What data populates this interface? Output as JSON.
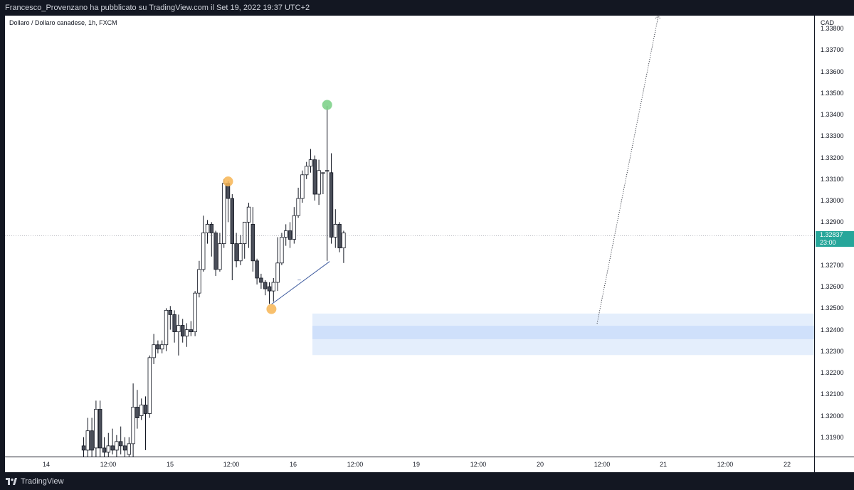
{
  "header": {
    "publication": "Francesco_Provenzano ha pubblicato su TradingView.com il Set 19, 2022 19:37 UTC+2"
  },
  "footer": {
    "brand": "TradingView"
  },
  "colors": {
    "background": "#131722",
    "candle_up": "#ffffff",
    "candle_down": "#4a4e59",
    "candle_outline": "#131722",
    "zone_outer": "#e4eefc",
    "zone_inner": "#cfe0fb",
    "pivot_orange": "#f7b553",
    "pivot_green": "#7fd18b",
    "trend_line": "#3d5a9e",
    "last_price": "#26a69a"
  },
  "chart_data": {
    "type": "candlestick",
    "title": "Dollaro / Dollaro canadese, 1h, FXCM",
    "currency": "CAD",
    "ylim": [
      1.3181,
      1.3386
    ],
    "y_ticks": [
      "1.33800",
      "1.33700",
      "1.33600",
      "1.33500",
      "1.33400",
      "1.33300",
      "1.33200",
      "1.33100",
      "1.33000",
      "1.32900",
      "1.32700",
      "1.32600",
      "1.32500",
      "1.32400",
      "1.32300",
      "1.32200",
      "1.32100",
      "1.32000",
      "1.31900"
    ],
    "x_ticks": [
      "14",
      "12:00",
      "15",
      "12:00",
      "16",
      "12:00",
      "19",
      "12:00",
      "20",
      "12:00",
      "21",
      "12:00",
      "22"
    ],
    "last_price": {
      "value": "1.32837",
      "countdown": "23:00"
    },
    "candles": [
      {
        "i": 0,
        "o": 1.3186,
        "h": 1.319,
        "l": 1.318,
        "c": 1.3184
      },
      {
        "i": 1,
        "o": 1.3184,
        "h": 1.3199,
        "l": 1.318,
        "c": 1.3193
      },
      {
        "i": 2,
        "o": 1.3193,
        "h": 1.3199,
        "l": 1.318,
        "c": 1.3184
      },
      {
        "i": 3,
        "o": 1.3185,
        "h": 1.3207,
        "l": 1.318,
        "c": 1.3203
      },
      {
        "i": 4,
        "o": 1.3203,
        "h": 1.3207,
        "l": 1.318,
        "c": 1.3185
      },
      {
        "i": 5,
        "o": 1.3185,
        "h": 1.319,
        "l": 1.318,
        "c": 1.3183
      },
      {
        "i": 6,
        "o": 1.3183,
        "h": 1.3192,
        "l": 1.3181,
        "c": 1.3186
      },
      {
        "i": 7,
        "o": 1.3186,
        "h": 1.3194,
        "l": 1.3182,
        "c": 1.3184
      },
      {
        "i": 8,
        "o": 1.3184,
        "h": 1.3191,
        "l": 1.3181,
        "c": 1.3188
      },
      {
        "i": 9,
        "o": 1.3188,
        "h": 1.3195,
        "l": 1.3182,
        "c": 1.3186
      },
      {
        "i": 10,
        "o": 1.3186,
        "h": 1.319,
        "l": 1.3181,
        "c": 1.3184
      },
      {
        "i": 11,
        "o": 1.3182,
        "h": 1.319,
        "l": 1.318,
        "c": 1.3187
      },
      {
        "i": 12,
        "o": 1.3187,
        "h": 1.3215,
        "l": 1.3181,
        "c": 1.3204
      },
      {
        "i": 13,
        "o": 1.3204,
        "h": 1.3212,
        "l": 1.3194,
        "c": 1.3199
      },
      {
        "i": 14,
        "o": 1.32,
        "h": 1.3208,
        "l": 1.3198,
        "c": 1.3205
      },
      {
        "i": 15,
        "o": 1.3205,
        "h": 1.3209,
        "l": 1.3184,
        "c": 1.3201
      },
      {
        "i": 16,
        "o": 1.3201,
        "h": 1.3228,
        "l": 1.3199,
        "c": 1.3227
      },
      {
        "i": 17,
        "o": 1.3227,
        "h": 1.3238,
        "l": 1.3224,
        "c": 1.3233
      },
      {
        "i": 18,
        "o": 1.3233,
        "h": 1.3235,
        "l": 1.3229,
        "c": 1.3231
      },
      {
        "i": 19,
        "o": 1.3231,
        "h": 1.3235,
        "l": 1.3229,
        "c": 1.3233
      },
      {
        "i": 20,
        "o": 1.3233,
        "h": 1.325,
        "l": 1.323,
        "c": 1.3249
      },
      {
        "i": 21,
        "o": 1.3249,
        "h": 1.3251,
        "l": 1.324,
        "c": 1.3247
      },
      {
        "i": 22,
        "o": 1.3247,
        "h": 1.3249,
        "l": 1.3234,
        "c": 1.3239
      },
      {
        "i": 23,
        "o": 1.3239,
        "h": 1.3247,
        "l": 1.3228,
        "c": 1.3242
      },
      {
        "i": 24,
        "o": 1.3242,
        "h": 1.3245,
        "l": 1.3234,
        "c": 1.3237
      },
      {
        "i": 25,
        "o": 1.3237,
        "h": 1.3243,
        "l": 1.3232,
        "c": 1.324
      },
      {
        "i": 26,
        "o": 1.324,
        "h": 1.3244,
        "l": 1.3237,
        "c": 1.3239
      },
      {
        "i": 27,
        "o": 1.3239,
        "h": 1.3258,
        "l": 1.3237,
        "c": 1.3257
      },
      {
        "i": 28,
        "o": 1.3257,
        "h": 1.3272,
        "l": 1.3255,
        "c": 1.3268
      },
      {
        "i": 29,
        "o": 1.3268,
        "h": 1.3293,
        "l": 1.3267,
        "c": 1.3285
      },
      {
        "i": 30,
        "o": 1.3285,
        "h": 1.3291,
        "l": 1.328,
        "c": 1.3289
      },
      {
        "i": 31,
        "o": 1.3289,
        "h": 1.329,
        "l": 1.3274,
        "c": 1.3285
      },
      {
        "i": 32,
        "o": 1.3285,
        "h": 1.3286,
        "l": 1.3265,
        "c": 1.3268
      },
      {
        "i": 33,
        "o": 1.3268,
        "h": 1.3285,
        "l": 1.3267,
        "c": 1.328
      },
      {
        "i": 34,
        "o": 1.328,
        "h": 1.331,
        "l": 1.3278,
        "c": 1.3308
      },
      {
        "i": 35,
        "o": 1.3308,
        "h": 1.3309,
        "l": 1.329,
        "c": 1.3301
      },
      {
        "i": 36,
        "o": 1.3301,
        "h": 1.3303,
        "l": 1.3263,
        "c": 1.328
      },
      {
        "i": 37,
        "o": 1.328,
        "h": 1.3285,
        "l": 1.3269,
        "c": 1.3272
      },
      {
        "i": 38,
        "o": 1.3272,
        "h": 1.3284,
        "l": 1.327,
        "c": 1.328
      },
      {
        "i": 39,
        "o": 1.328,
        "h": 1.3288,
        "l": 1.3273,
        "c": 1.329
      },
      {
        "i": 40,
        "o": 1.329,
        "h": 1.3299,
        "l": 1.3278,
        "c": 1.3297
      },
      {
        "i": 41,
        "o": 1.3289,
        "h": 1.3297,
        "l": 1.3267,
        "c": 1.3272
      },
      {
        "i": 42,
        "o": 1.3272,
        "h": 1.3273,
        "l": 1.3261,
        "c": 1.3264
      },
      {
        "i": 43,
        "o": 1.3264,
        "h": 1.3266,
        "l": 1.3259,
        "c": 1.3262
      },
      {
        "i": 44,
        "o": 1.3262,
        "h": 1.3263,
        "l": 1.3256,
        "c": 1.3259
      },
      {
        "i": 45,
        "o": 1.326,
        "h": 1.3262,
        "l": 1.3252,
        "c": 1.3258
      },
      {
        "i": 46,
        "o": 1.3258,
        "h": 1.3264,
        "l": 1.3253,
        "c": 1.3262
      },
      {
        "i": 47,
        "o": 1.3262,
        "h": 1.3283,
        "l": 1.3258,
        "c": 1.3271
      },
      {
        "i": 48,
        "o": 1.3271,
        "h": 1.3285,
        "l": 1.327,
        "c": 1.3283
      },
      {
        "i": 49,
        "o": 1.3283,
        "h": 1.3289,
        "l": 1.3279,
        "c": 1.3286
      },
      {
        "i": 50,
        "o": 1.3286,
        "h": 1.329,
        "l": 1.3278,
        "c": 1.3282
      },
      {
        "i": 51,
        "o": 1.3282,
        "h": 1.3297,
        "l": 1.328,
        "c": 1.3293
      },
      {
        "i": 52,
        "o": 1.3293,
        "h": 1.3306,
        "l": 1.3292,
        "c": 1.3301
      },
      {
        "i": 53,
        "o": 1.3301,
        "h": 1.3314,
        "l": 1.3299,
        "c": 1.3312
      },
      {
        "i": 54,
        "o": 1.3312,
        "h": 1.3318,
        "l": 1.331,
        "c": 1.3316
      },
      {
        "i": 55,
        "o": 1.3316,
        "h": 1.3324,
        "l": 1.3313,
        "c": 1.3319
      },
      {
        "i": 56,
        "o": 1.3319,
        "h": 1.3321,
        "l": 1.33,
        "c": 1.3303
      },
      {
        "i": 57,
        "o": 1.3303,
        "h": 1.3319,
        "l": 1.3298,
        "c": 1.3314
      },
      {
        "i": 58,
        "o": 1.3313,
        "h": 1.3313,
        "l": 1.3303,
        "c": 1.3313
      },
      {
        "i": 59,
        "o": 1.3314,
        "h": 1.3344,
        "l": 1.3272,
        "c": 1.3314
      },
      {
        "i": 60,
        "o": 1.3313,
        "h": 1.3322,
        "l": 1.328,
        "c": 1.3283
      },
      {
        "i": 61,
        "o": 1.3283,
        "h": 1.3296,
        "l": 1.3278,
        "c": 1.3289
      },
      {
        "i": 62,
        "o": 1.3289,
        "h": 1.329,
        "l": 1.3276,
        "c": 1.3278
      },
      {
        "i": 63,
        "o": 1.3278,
        "h": 1.3286,
        "l": 1.3271,
        "c": 1.3285
      }
    ]
  }
}
